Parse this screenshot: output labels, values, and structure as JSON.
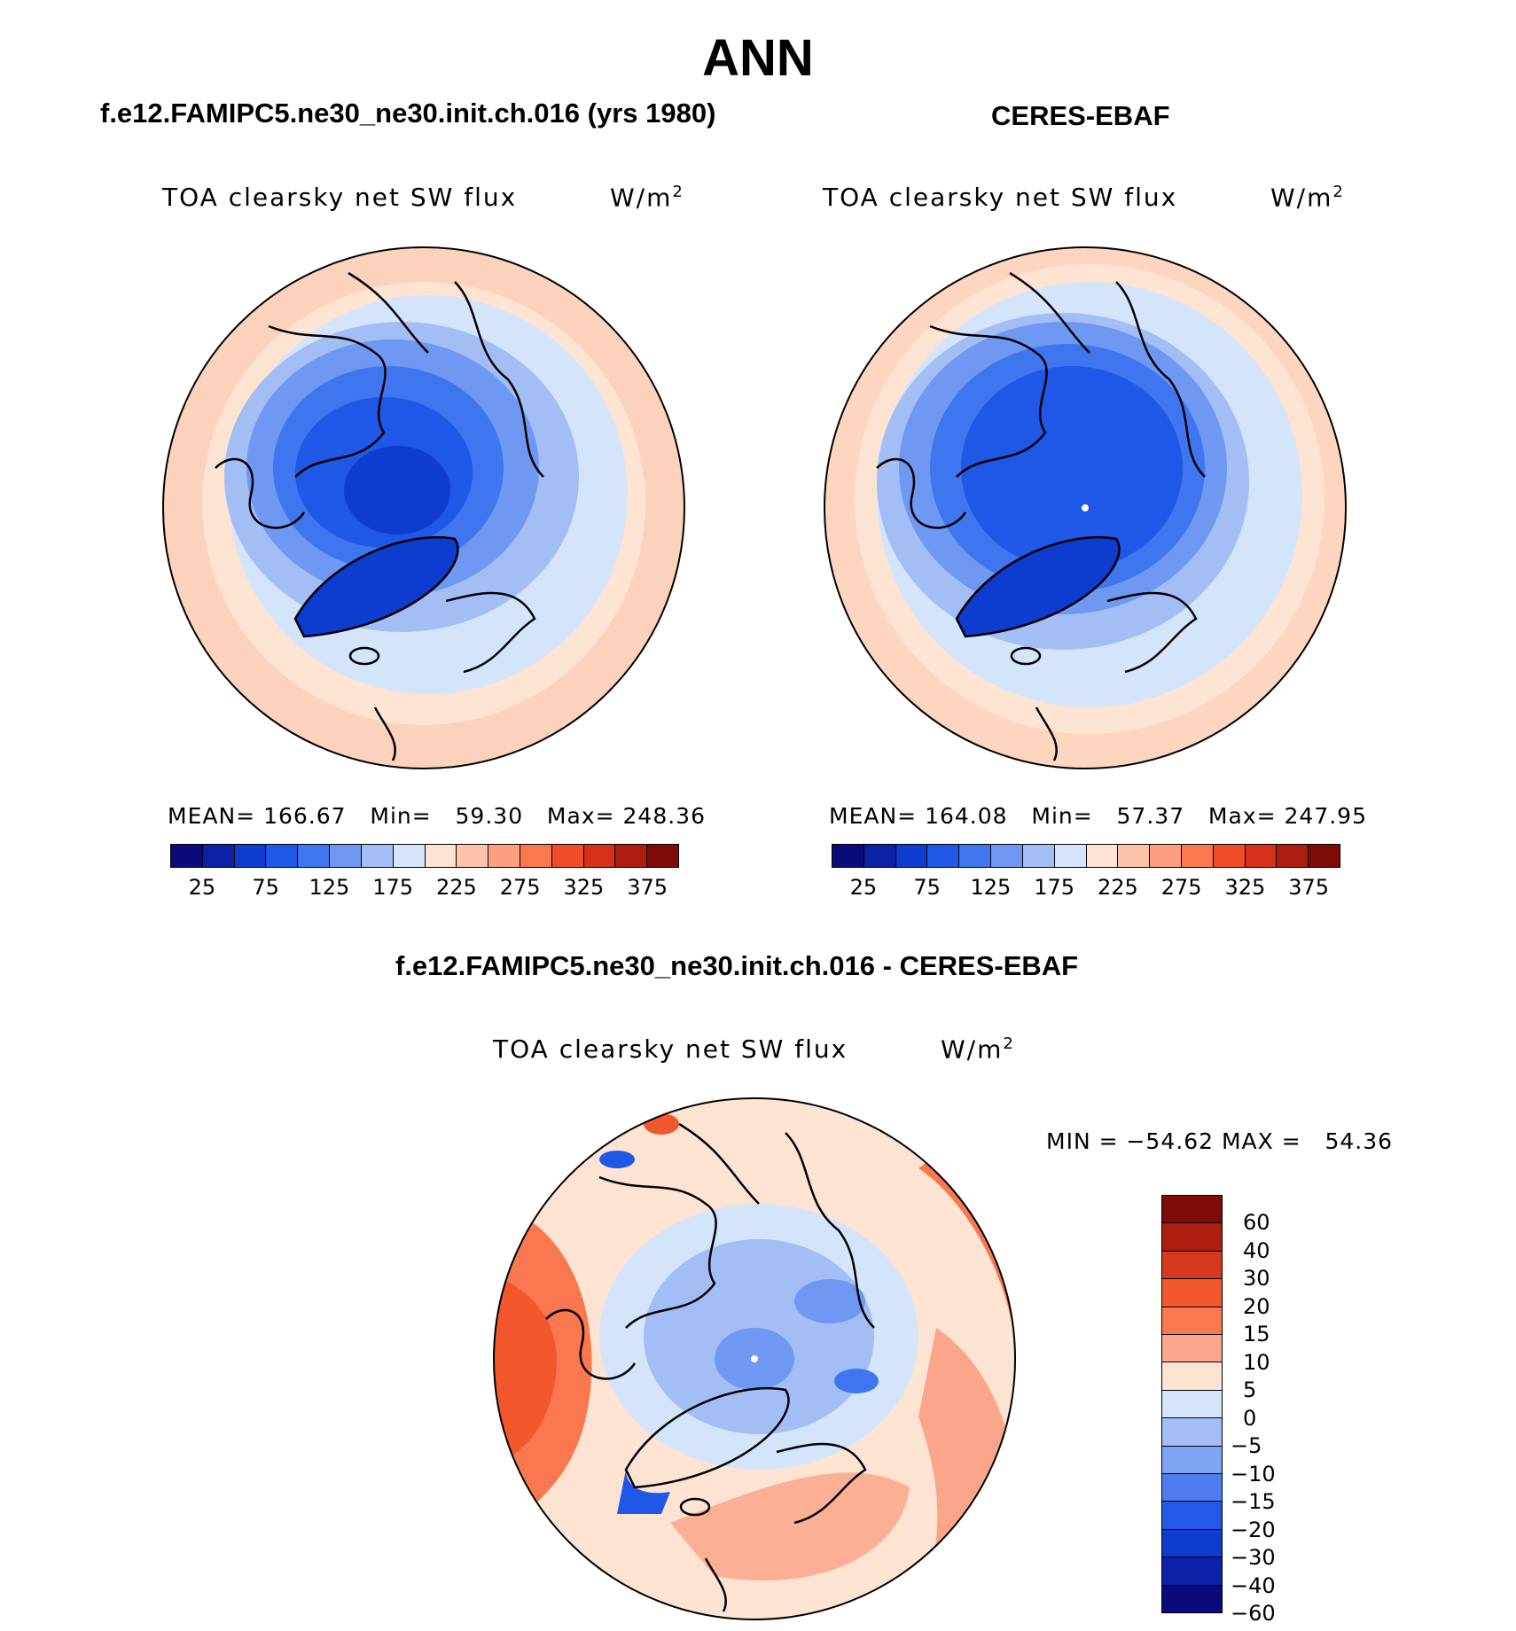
{
  "title": "ANN",
  "panels": [
    {
      "id": "model",
      "subtitle": "f.e12.FAMIPC5.ne30_ne30.init.ch.016 (yrs 1980)",
      "variable": "TOA clearsky net SW flux",
      "units": "W/m",
      "units_exp": "2",
      "stats": "MEAN= 166.67   Min=   59.30   Max= 248.36"
    },
    {
      "id": "obs",
      "subtitle": "CERES-EBAF",
      "variable": "TOA clearsky net SW flux",
      "units": "W/m",
      "units_exp": "2",
      "stats": "MEAN= 164.08   Min=   57.37   Max= 247.95"
    }
  ],
  "diff": {
    "subtitle": "f.e12.FAMIPC5.ne30_ne30.init.ch.016 - CERES-EBAF",
    "variable": "TOA clearsky net SW flux",
    "units": "W/m",
    "units_exp": "2",
    "stats": "MIN = −54.62 MAX =   54.36"
  },
  "colorbar_abs": {
    "colors": [
      "#0a0a7a",
      "#0b22a8",
      "#0d3ccf",
      "#1f57e6",
      "#3f75ee",
      "#6e98f2",
      "#a3bdf5",
      "#d4e4fa",
      "#fde4d2",
      "#fcc3aa",
      "#fb9f7f",
      "#f9784f",
      "#f14c2a",
      "#d6301a",
      "#ad1d10",
      "#7e0b08"
    ],
    "ticks": [
      "25",
      "75",
      "125",
      "175",
      "225",
      "275",
      "325",
      "375"
    ]
  },
  "colorbar_diff": {
    "colors": [
      "#7e0b08",
      "#ad1d10",
      "#d6391e",
      "#f2572e",
      "#f9784f",
      "#fba68a",
      "#fde4d2",
      "#d4e4fa",
      "#a3bdf5",
      "#7fa4f4",
      "#4d7df0",
      "#2458e8",
      "#0d3ccf",
      "#0b22a8",
      "#0a0a7a"
    ],
    "ticks": [
      "60",
      "40",
      "30",
      "20",
      "15",
      "10",
      "5",
      "0",
      "−5",
      "−10",
      "−15",
      "−20",
      "−30",
      "−40",
      "−60"
    ]
  },
  "map_palette": {
    "land_outline": "#000000",
    "warm": [
      "#fde4d2",
      "#fcc3aa",
      "#fba68a",
      "#f9784f",
      "#f2572e"
    ],
    "cool": [
      "#d4e4fa",
      "#a3bdf5",
      "#6e98f2",
      "#3f75ee",
      "#1f57e6",
      "#0d3ccf"
    ]
  }
}
